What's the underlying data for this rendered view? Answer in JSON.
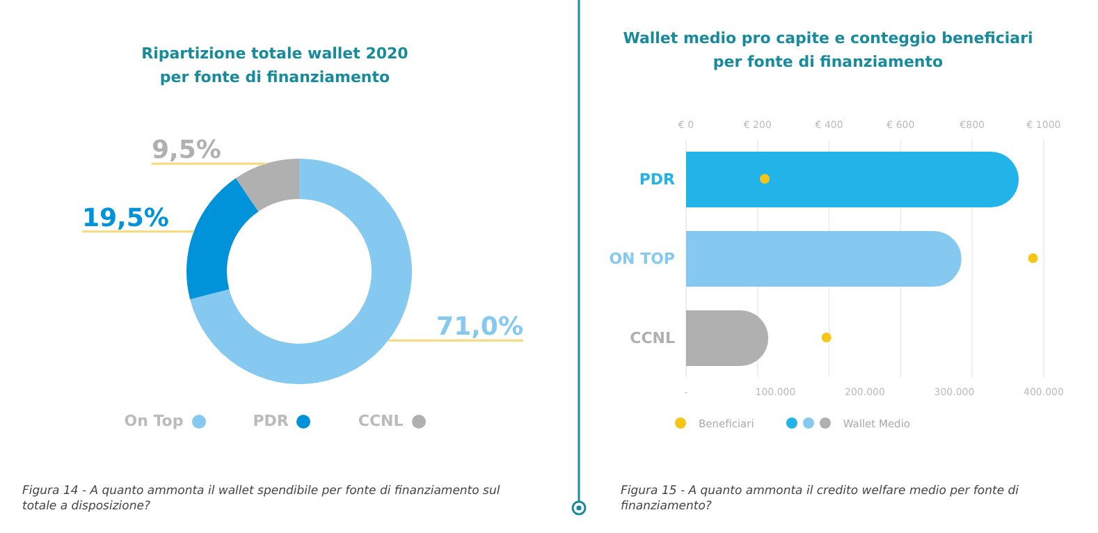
{
  "chart_data": [
    {
      "type": "donut",
      "title": "Ripartizione totale wallet 2020\nper fonte di finanziamento",
      "categories": [
        "On Top",
        "PDR",
        "CCNL"
      ],
      "values": [
        71.0,
        19.5,
        9.5
      ],
      "colors": [
        "#85c8f0",
        "#0093d9",
        "#b0b0b0"
      ],
      "value_labels": [
        "71,0%",
        "19,5%",
        "9,5%"
      ],
      "legend": "bottom",
      "annotations": [
        "Figura 14 - A quanto ammonta il wallet spendibile per fonte di finanziamento sul totale a disposizione?"
      ]
    },
    {
      "type": "bar",
      "orientation": "horizontal",
      "title": "Wallet medio pro capite e conteggio beneficiari\nper fonte di finanziamento",
      "categories": [
        "PDR",
        "ON TOP",
        "CCNL"
      ],
      "series": [
        {
          "name": "Wallet Medio",
          "axis": "x2",
          "colors": [
            "#22b4e8",
            "#85c8f0",
            "#b0b0b0"
          ],
          "values": [
            930,
            770,
            230
          ]
        },
        {
          "name": "Beneficiari",
          "type": "scatter",
          "color": "#f5c518",
          "values": [
            88000,
            388000,
            157000
          ]
        }
      ],
      "xlim": [
        0,
        400000
      ],
      "xticks": [
        {
          "value": 0,
          "label": "-"
        },
        {
          "value": 100000,
          "label": "100.000"
        },
        {
          "value": 200000,
          "label": "200.000"
        },
        {
          "value": 300000,
          "label": "300.000"
        },
        {
          "value": 400000,
          "label": "400.000"
        }
      ],
      "x2lim": [
        0,
        1000
      ],
      "x2ticks": [
        {
          "value": 0,
          "label": "€ 0"
        },
        {
          "value": 200,
          "label": "€ 200"
        },
        {
          "value": 400,
          "label": "€ 400"
        },
        {
          "value": 600,
          "label": "€ 600"
        },
        {
          "value": 800,
          "label": "€800"
        },
        {
          "value": 1000,
          "label": "€ 1000"
        }
      ],
      "grid": "x",
      "legend": "bottom left",
      "annotations": [
        "Figura 15 - A quanto ammonta il credito welfare medio per fonte di finanziamento?"
      ]
    }
  ]
}
